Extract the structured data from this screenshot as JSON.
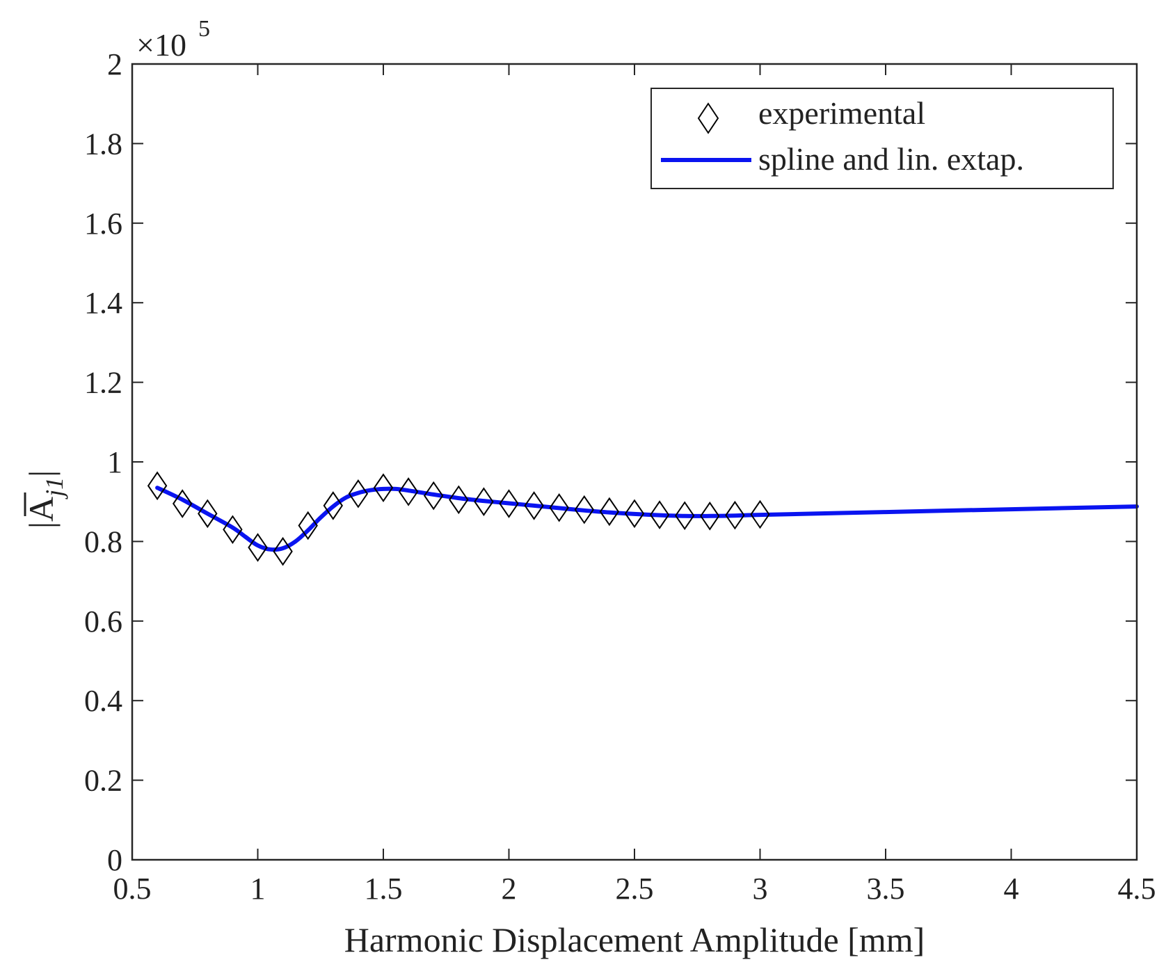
{
  "chart_data": {
    "type": "line",
    "xlabel": "Harmonic Displacement Amplitude [mm]",
    "ylabel": "|A̅j1|",
    "ylabel_main": "|A",
    "ylabel_sub": "j1",
    "ylabel_close": "|",
    "y_exponent_prefix": "×10",
    "y_exponent": "5",
    "xlim": [
      0.5,
      4.5
    ],
    "ylim": [
      0,
      2
    ],
    "x_ticks": [
      0.5,
      1,
      1.5,
      2,
      2.5,
      3,
      3.5,
      4,
      4.5
    ],
    "x_tick_labels": [
      "0.5",
      "1",
      "1.5",
      "2",
      "2.5",
      "3",
      "3.5",
      "4",
      "4.5"
    ],
    "y_ticks": [
      0,
      0.2,
      0.4,
      0.6,
      0.8,
      1,
      1.2,
      1.4,
      1.6,
      1.8,
      2
    ],
    "y_tick_labels": [
      "0",
      "0.2",
      "0.4",
      "0.6",
      "0.8",
      "1",
      "1.2",
      "1.4",
      "1.6",
      "1.8",
      "2"
    ],
    "grid": false,
    "legend_position": "top-right",
    "series": [
      {
        "name": "experimental",
        "style": "markers",
        "marker": "diamond",
        "color": "#000000",
        "x": [
          0.6,
          0.7,
          0.8,
          0.9,
          1.0,
          1.1,
          1.2,
          1.3,
          1.4,
          1.5,
          1.6,
          1.7,
          1.8,
          1.9,
          2.0,
          2.1,
          2.2,
          2.3,
          2.4,
          2.5,
          2.6,
          2.7,
          2.8,
          2.9,
          3.0
        ],
        "y": [
          0.94,
          0.895,
          0.87,
          0.83,
          0.785,
          0.775,
          0.84,
          0.89,
          0.92,
          0.935,
          0.925,
          0.915,
          0.905,
          0.9,
          0.895,
          0.89,
          0.885,
          0.88,
          0.875,
          0.87,
          0.867,
          0.865,
          0.864,
          0.866,
          0.868
        ]
      },
      {
        "name": "spline and lin. extap.",
        "style": "line",
        "color": "#0a14f0",
        "x": [
          0.6,
          0.7,
          0.8,
          0.9,
          0.95,
          1.0,
          1.05,
          1.1,
          1.15,
          1.2,
          1.25,
          1.3,
          1.35,
          1.4,
          1.45,
          1.5,
          1.55,
          1.6,
          1.7,
          1.8,
          1.9,
          2.0,
          2.1,
          2.2,
          2.3,
          2.4,
          2.5,
          2.6,
          2.7,
          2.8,
          2.9,
          3.0,
          3.5,
          4.0,
          4.5
        ],
        "y": [
          0.935,
          0.905,
          0.87,
          0.835,
          0.812,
          0.79,
          0.78,
          0.783,
          0.8,
          0.828,
          0.86,
          0.888,
          0.91,
          0.922,
          0.929,
          0.932,
          0.932,
          0.928,
          0.918,
          0.909,
          0.902,
          0.896,
          0.89,
          0.884,
          0.878,
          0.873,
          0.869,
          0.866,
          0.864,
          0.864,
          0.865,
          0.867,
          0.874,
          0.881,
          0.888
        ]
      }
    ]
  }
}
